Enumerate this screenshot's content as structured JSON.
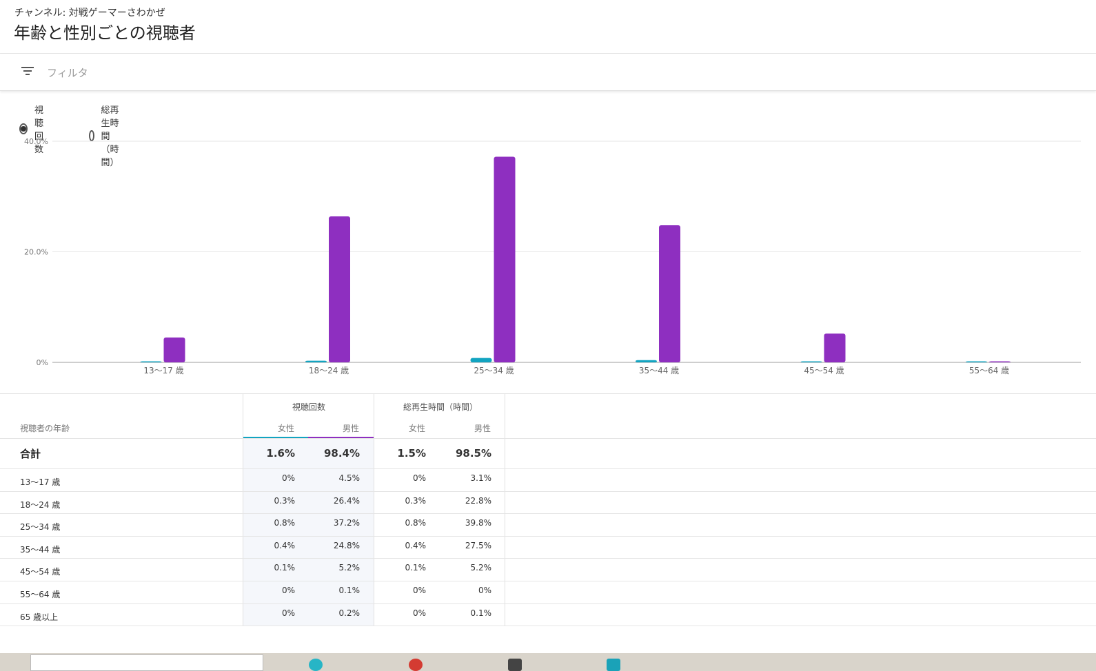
{
  "header": {
    "channel": "チャンネル: 対戦ゲーマーさわかぜ",
    "title": "年齢と性別ごとの視聴者"
  },
  "filter": {
    "placeholder": "フィルタ"
  },
  "radios": [
    {
      "label": "視聴回数",
      "selected": true
    },
    {
      "label": "総再生時間（時間）",
      "selected": false
    }
  ],
  "colors": {
    "female": "#12a4c1",
    "male": "#8e2fc0",
    "grid": "#e6e6e6",
    "axis": "#9e9e9e"
  },
  "chart_data": {
    "type": "bar",
    "categories": [
      "13〜17 歳",
      "18〜24 歳",
      "25〜34 歳",
      "35〜44 歳",
      "45〜54 歳",
      "55〜64 歳"
    ],
    "series": [
      {
        "name": "女性",
        "values": [
          0,
          0.3,
          0.8,
          0.4,
          0.1,
          0
        ]
      },
      {
        "name": "男性",
        "values": [
          4.5,
          26.4,
          37.2,
          24.8,
          5.2,
          0.1
        ]
      }
    ],
    "yticks": [
      "0%",
      "20.0%",
      "40.0%"
    ],
    "ytick_values": [
      0,
      20,
      40
    ],
    "ylim": [
      0,
      40
    ],
    "grid": true
  },
  "table": {
    "age_header": "視聴者の年齢",
    "group_views": "視聴回数",
    "group_watch": "総再生時間（時間）",
    "female": "女性",
    "male": "男性",
    "total": {
      "label": "合計",
      "v_f": "1.6%",
      "v_m": "98.4%",
      "w_f": "1.5%",
      "w_m": "98.5%"
    },
    "rows": [
      {
        "age": "13〜17 歳",
        "v_f": "0%",
        "v_m": "4.5%",
        "w_f": "0%",
        "w_m": "3.1%"
      },
      {
        "age": "18〜24 歳",
        "v_f": "0.3%",
        "v_m": "26.4%",
        "w_f": "0.3%",
        "w_m": "22.8%"
      },
      {
        "age": "25〜34 歳",
        "v_f": "0.8%",
        "v_m": "37.2%",
        "w_f": "0.8%",
        "w_m": "39.8%"
      },
      {
        "age": "35〜44 歳",
        "v_f": "0.4%",
        "v_m": "24.8%",
        "w_f": "0.4%",
        "w_m": "27.5%"
      },
      {
        "age": "45〜54 歳",
        "v_f": "0.1%",
        "v_m": "5.2%",
        "w_f": "0.1%",
        "w_m": "5.2%"
      },
      {
        "age": "55〜64 歳",
        "v_f": "0%",
        "v_m": "0.1%",
        "w_f": "0%",
        "w_m": "0%"
      },
      {
        "age": "65 歳以上",
        "v_f": "0%",
        "v_m": "0.2%",
        "w_f": "0%",
        "w_m": "0.1%"
      }
    ]
  }
}
